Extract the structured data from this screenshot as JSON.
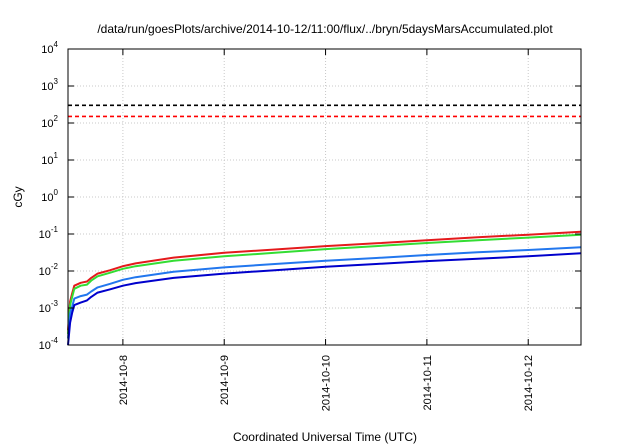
{
  "chart_data": {
    "type": "line",
    "title": "/data/run/goesPlots/archive/2014-10-12/11:00/flux/../bryn/5daysMarsAccumulated.plot",
    "xlabel": "Coordinated Universal Time (UTC)",
    "ylabel": "cGy",
    "yscale": "log",
    "ylim": [
      0.0001,
      10000
    ],
    "xlim": [
      "2014-10-07 11:00",
      "2014-10-12 12:30"
    ],
    "grid": true,
    "x_ticks": [
      {
        "value": "2014-10-08 00:00",
        "label": "2014-10-8"
      },
      {
        "value": "2014-10-09 00:00",
        "label": "2014-10-9"
      },
      {
        "value": "2014-10-10 00:00",
        "label": "2014-10-10"
      },
      {
        "value": "2014-10-11 00:00",
        "label": "2014-10-11"
      },
      {
        "value": "2014-10-12 00:00",
        "label": "2014-10-12"
      }
    ],
    "y_ticks": [
      {
        "value": 0.0001,
        "base": "10",
        "exp": "-4"
      },
      {
        "value": 0.001,
        "base": "10",
        "exp": "-3"
      },
      {
        "value": 0.01,
        "base": "10",
        "exp": "-2"
      },
      {
        "value": 0.1,
        "base": "10",
        "exp": "-1"
      },
      {
        "value": 1,
        "base": "10",
        "exp": "0"
      },
      {
        "value": 10,
        "base": "10",
        "exp": "1"
      },
      {
        "value": 100,
        "base": "10",
        "exp": "2"
      },
      {
        "value": 1000,
        "base": "10",
        "exp": "3"
      },
      {
        "value": 10000,
        "base": "10",
        "exp": "4"
      }
    ],
    "thresholds": [
      {
        "value": 300,
        "color": "#000000",
        "style": "dashed"
      },
      {
        "value": 150,
        "color": "#ff0000",
        "style": "dashed"
      }
    ],
    "series": [
      {
        "color": "#e41a1c",
        "points": [
          [
            "2014-10-07 11:00",
            0.00025
          ],
          [
            "2014-10-07 11:30",
            0.0015
          ],
          [
            "2014-10-07 12:00",
            0.0025
          ],
          [
            "2014-10-07 12:30",
            0.004
          ],
          [
            "2014-10-07 14:00",
            0.0048
          ],
          [
            "2014-10-07 15:30",
            0.0052
          ],
          [
            "2014-10-07 16:30",
            0.0065
          ],
          [
            "2014-10-07 18:00",
            0.0085
          ],
          [
            "2014-10-07 21:00",
            0.0105
          ],
          [
            "2014-10-08 00:00",
            0.0135
          ],
          [
            "2014-10-08 03:00",
            0.016
          ],
          [
            "2014-10-08 12:00",
            0.023
          ],
          [
            "2014-10-09 00:00",
            0.031
          ],
          [
            "2014-10-09 12:00",
            0.038
          ],
          [
            "2014-10-10 00:00",
            0.047
          ],
          [
            "2014-10-10 12:00",
            0.056
          ],
          [
            "2014-10-11 00:00",
            0.068
          ],
          [
            "2014-10-11 12:00",
            0.082
          ],
          [
            "2014-10-12 00:00",
            0.096
          ],
          [
            "2014-10-12 12:30",
            0.115
          ]
        ]
      },
      {
        "color": "#33dd33",
        "points": [
          [
            "2014-10-07 11:00",
            0.0002
          ],
          [
            "2014-10-07 11:30",
            0.0012
          ],
          [
            "2014-10-07 12:00",
            0.002
          ],
          [
            "2014-10-07 12:30",
            0.0033
          ],
          [
            "2014-10-07 14:00",
            0.004
          ],
          [
            "2014-10-07 15:30",
            0.0043
          ],
          [
            "2014-10-07 16:30",
            0.0055
          ],
          [
            "2014-10-07 18:00",
            0.0072
          ],
          [
            "2014-10-07 21:00",
            0.009
          ],
          [
            "2014-10-08 00:00",
            0.0115
          ],
          [
            "2014-10-08 03:00",
            0.0135
          ],
          [
            "2014-10-08 12:00",
            0.019
          ],
          [
            "2014-10-09 00:00",
            0.025
          ],
          [
            "2014-10-09 12:00",
            0.031
          ],
          [
            "2014-10-10 00:00",
            0.039
          ],
          [
            "2014-10-10 12:00",
            0.047
          ],
          [
            "2014-10-11 00:00",
            0.057
          ],
          [
            "2014-10-11 12:00",
            0.068
          ],
          [
            "2014-10-12 00:00",
            0.08
          ],
          [
            "2014-10-12 12:30",
            0.095
          ]
        ]
      },
      {
        "color": "#2277ee",
        "points": [
          [
            "2014-10-07 11:00",
            0.00015
          ],
          [
            "2014-10-07 11:30",
            0.0007
          ],
          [
            "2014-10-07 12:00",
            0.0011
          ],
          [
            "2014-10-07 12:30",
            0.0018
          ],
          [
            "2014-10-07 14:00",
            0.0021
          ],
          [
            "2014-10-07 15:30",
            0.0023
          ],
          [
            "2014-10-07 16:30",
            0.0028
          ],
          [
            "2014-10-07 18:00",
            0.0036
          ],
          [
            "2014-10-07 21:00",
            0.0045
          ],
          [
            "2014-10-08 00:00",
            0.0058
          ],
          [
            "2014-10-08 03:00",
            0.0068
          ],
          [
            "2014-10-08 12:00",
            0.0095
          ],
          [
            "2014-10-09 00:00",
            0.0125
          ],
          [
            "2014-10-09 12:00",
            0.0155
          ],
          [
            "2014-10-10 00:00",
            0.019
          ],
          [
            "2014-10-10 12:00",
            0.0225
          ],
          [
            "2014-10-11 00:00",
            0.027
          ],
          [
            "2014-10-11 12:00",
            0.032
          ],
          [
            "2014-10-12 00:00",
            0.037
          ],
          [
            "2014-10-12 12:30",
            0.044
          ]
        ]
      },
      {
        "color": "#0000cc",
        "points": [
          [
            "2014-10-07 11:00",
            0.0001
          ],
          [
            "2014-10-07 11:30",
            0.0004
          ],
          [
            "2014-10-07 12:00",
            0.00075
          ],
          [
            "2014-10-07 12:30",
            0.0012
          ],
          [
            "2014-10-07 14:00",
            0.0014
          ],
          [
            "2014-10-07 15:30",
            0.0016
          ],
          [
            "2014-10-07 16:30",
            0.002
          ],
          [
            "2014-10-07 18:00",
            0.0026
          ],
          [
            "2014-10-07 21:00",
            0.0032
          ],
          [
            "2014-10-08 00:00",
            0.004
          ],
          [
            "2014-10-08 03:00",
            0.0047
          ],
          [
            "2014-10-08 12:00",
            0.0065
          ],
          [
            "2014-10-09 00:00",
            0.0085
          ],
          [
            "2014-10-09 12:00",
            0.0105
          ],
          [
            "2014-10-10 00:00",
            0.013
          ],
          [
            "2014-10-10 12:00",
            0.0155
          ],
          [
            "2014-10-11 00:00",
            0.0185
          ],
          [
            "2014-10-11 12:00",
            0.0215
          ],
          [
            "2014-10-12 00:00",
            0.025
          ],
          [
            "2014-10-12 12:30",
            0.03
          ]
        ]
      }
    ]
  }
}
